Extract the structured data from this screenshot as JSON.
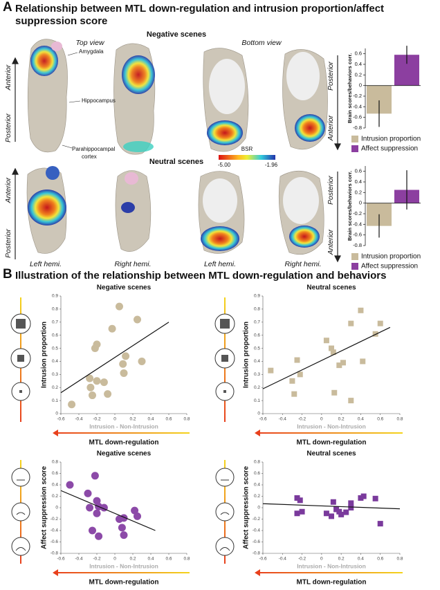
{
  "panel_a": {
    "letter": "A",
    "title": "Relationship between MTL down-regulation and intrusion proportion/affect suppression score",
    "negative_label": "Negative scenes",
    "neutral_label": "Neutral scenes",
    "top_view": "Top view",
    "bottom_view": "Bottom view",
    "amygdala": "Amygdala",
    "hippocampus": "Hippocampus",
    "parahippocampal": [
      "Parahippocampal",
      "cortex"
    ],
    "anterior": "Anterior",
    "posterior": "Posterior",
    "bsr_label": "BSR",
    "bsr_min": "-5.00",
    "bsr_max": "-1.96",
    "left_hemi": "Left hemi.",
    "right_hemi": "Right hemi."
  },
  "panel_b": {
    "letter": "B",
    "title": "Illustration of the relationship between MTL down-regulation and behaviors"
  },
  "chart_data": [
    {
      "type": "bar",
      "ylabel": "Brain scores/behaviors corr.",
      "ylim": [
        -0.8,
        0.7
      ],
      "yticks": [
        -0.8,
        -0.6,
        -0.4,
        -0.2,
        0,
        0.2,
        0.4,
        0.6
      ],
      "series": [
        {
          "name": "Intrusion proportion",
          "color": "#c9bb9c",
          "values": [
            -0.53
          ],
          "errors": [
            0.25
          ]
        },
        {
          "name": "Affect suppression",
          "color": "#8c3fa0",
          "values": [
            0.58
          ],
          "errors": [
            0.17
          ]
        }
      ]
    },
    {
      "type": "bar",
      "ylabel": "Brain scores/behaviors corr.",
      "ylim": [
        -0.8,
        0.7
      ],
      "yticks": [
        -0.8,
        -0.6,
        -0.4,
        -0.2,
        0,
        0.2,
        0.4,
        0.6
      ],
      "series": [
        {
          "name": "Intrusion proportion",
          "color": "#c9bb9c",
          "values": [
            -0.43
          ],
          "errors": [
            0.22
          ]
        },
        {
          "name": "Affect suppression",
          "color": "#8c3fa0",
          "values": [
            0.25
          ],
          "errors": [
            0.37
          ]
        }
      ]
    },
    {
      "type": "scatter",
      "title": "Negative scenes",
      "ylabel": "Intrusion proportion",
      "xlabel": "MTL down-regulation",
      "x_sublabel": "Intrusion - Non-Intrusion",
      "marker": "circle",
      "color": "#c9bb9c",
      "xlim": [
        -0.6,
        0.8
      ],
      "ylim": [
        0,
        0.9
      ],
      "xticks": [
        -0.6,
        -0.4,
        -0.2,
        0,
        0.2,
        0.4,
        0.6,
        0.8
      ],
      "yticks": [
        0,
        0.1,
        0.2,
        0.3,
        0.4,
        0.5,
        0.6,
        0.7,
        0.8,
        0.9
      ],
      "x": [
        -0.48,
        -0.28,
        -0.27,
        -0.25,
        -0.22,
        -0.2,
        -0.2,
        -0.12,
        -0.08,
        -0.03,
        0.05,
        0.09,
        0.1,
        0.12,
        0.25,
        0.3
      ],
      "y": [
        0.07,
        0.27,
        0.2,
        0.14,
        0.5,
        0.53,
        0.25,
        0.24,
        0.15,
        0.65,
        0.82,
        0.38,
        0.31,
        0.44,
        0.72,
        0.4
      ],
      "fit_line": {
        "x": [
          -0.6,
          0.6
        ],
        "y": [
          0.16,
          0.7
        ]
      }
    },
    {
      "type": "scatter",
      "title": "Neutral scenes",
      "ylabel": "Intrusion proportion",
      "xlabel": "MTL down-regulation",
      "x_sublabel": "Intrusion - Non-Intrusion",
      "marker": "square",
      "color": "#c9bb9c",
      "xlim": [
        -0.6,
        0.8
      ],
      "ylim": [
        0,
        0.9
      ],
      "xticks": [
        -0.6,
        -0.4,
        -0.2,
        0,
        0.2,
        0.4,
        0.6,
        0.8
      ],
      "yticks": [
        0,
        0.1,
        0.2,
        0.3,
        0.4,
        0.5,
        0.6,
        0.7,
        0.8,
        0.9
      ],
      "x": [
        -0.52,
        -0.3,
        -0.28,
        -0.25,
        -0.22,
        0.05,
        0.1,
        0.12,
        0.13,
        0.18,
        0.22,
        0.3,
        0.3,
        0.4,
        0.42,
        0.55,
        0.6
      ],
      "y": [
        0.33,
        0.25,
        0.15,
        0.41,
        0.3,
        0.56,
        0.5,
        0.47,
        0.16,
        0.37,
        0.39,
        0.1,
        0.69,
        0.79,
        0.4,
        0.61,
        0.69
      ],
      "fit_line": {
        "x": [
          -0.6,
          0.7
        ],
        "y": [
          0.19,
          0.66
        ]
      }
    },
    {
      "type": "scatter",
      "title": "Negative scenes",
      "ylabel": "Affect suppression score",
      "xlabel": "MTL down-regulation",
      "x_sublabel": "Intrusion - Non-Intrusion",
      "marker": "circle",
      "color": "#8c4aa8",
      "xlim": [
        -0.6,
        0.8
      ],
      "ylim": [
        -0.8,
        0.8
      ],
      "xticks": [
        -0.6,
        -0.4,
        -0.2,
        0,
        0.2,
        0.4,
        0.6,
        0.8
      ],
      "yticks": [
        -0.8,
        -0.6,
        -0.4,
        -0.2,
        0,
        0.2,
        0.4,
        0.6,
        0.8
      ],
      "x": [
        -0.5,
        -0.3,
        -0.28,
        -0.25,
        -0.22,
        -0.2,
        -0.18,
        -0.18,
        -0.2,
        -0.12,
        0.05,
        0.08,
        0.1,
        0.1,
        0.22,
        0.25
      ],
      "y": [
        0.4,
        0.25,
        0.0,
        -0.4,
        0.56,
        0.12,
        0.02,
        -0.5,
        -0.1,
        0.0,
        -0.2,
        -0.35,
        -0.18,
        -0.48,
        -0.05,
        -0.15
      ],
      "fit_line": {
        "x": [
          -0.6,
          0.45
        ],
        "y": [
          0.3,
          -0.4
        ]
      }
    },
    {
      "type": "scatter",
      "title": "Neutral scenes",
      "ylabel": "Affect suppression score",
      "xlabel": "MTL down-regulation",
      "x_sublabel": "Intrusion - Non-Intrusion",
      "marker": "square",
      "color": "#7a3a9c",
      "xlim": [
        -0.6,
        0.8
      ],
      "ylim": [
        -0.8,
        0.8
      ],
      "xticks": [
        -0.6,
        -0.4,
        -0.2,
        0,
        0.2,
        0.4,
        0.6,
        0.8
      ],
      "yticks": [
        -0.8,
        -0.6,
        -0.4,
        -0.2,
        0,
        0.2,
        0.4,
        0.6,
        0.8
      ],
      "x": [
        -0.25,
        -0.22,
        -0.25,
        -0.2,
        0.05,
        0.1,
        0.12,
        0.15,
        0.18,
        0.2,
        0.25,
        0.3,
        0.3,
        0.4,
        0.43,
        0.55,
        0.6
      ],
      "y": [
        0.17,
        0.13,
        -0.1,
        -0.07,
        -0.1,
        -0.15,
        0.1,
        -0.03,
        -0.07,
        -0.12,
        -0.08,
        0.08,
        0.0,
        0.17,
        0.2,
        0.16,
        -0.28
      ],
      "fit_line": {
        "x": [
          -0.6,
          0.8
        ],
        "y": [
          0.07,
          -0.02
        ]
      }
    }
  ]
}
